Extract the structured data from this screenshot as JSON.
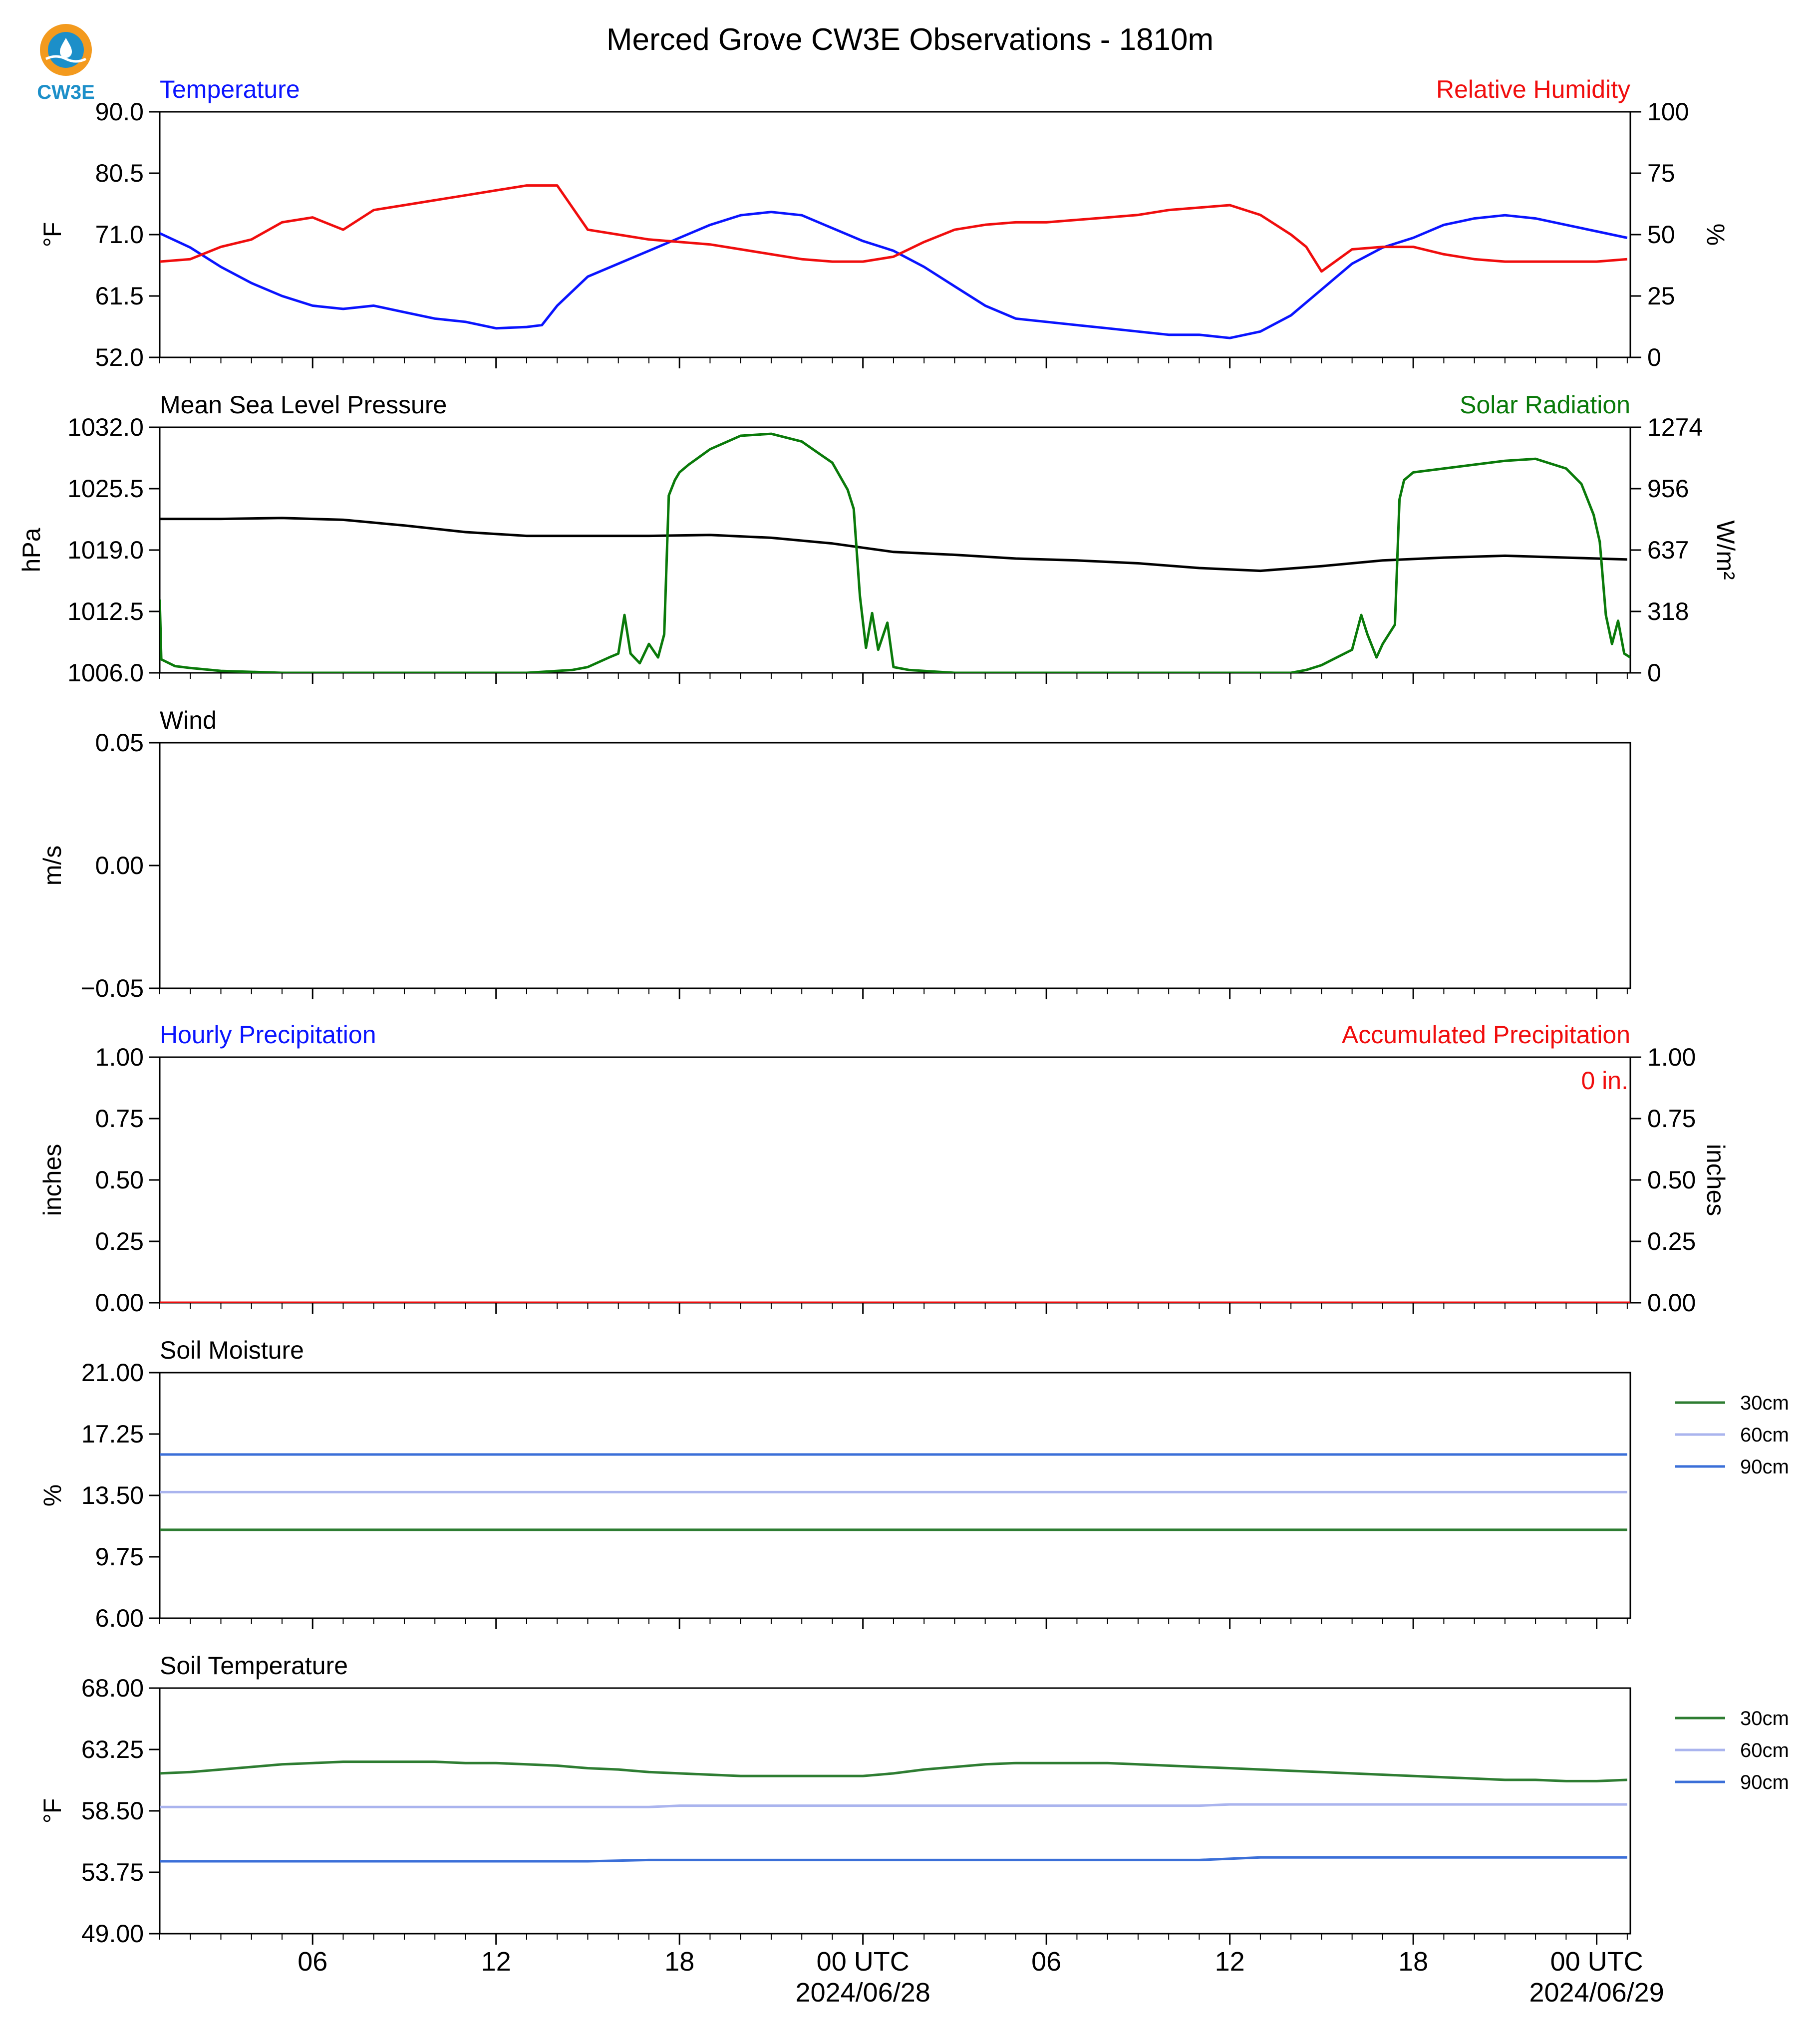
{
  "page": {
    "title": "Merced Grove CW3E Observations - 1810m",
    "logo_text": "CW3E",
    "colors": {
      "blue": "#0a14ff",
      "red": "#f00d0d",
      "green": "#0a7a0a",
      "black": "#000000",
      "soil30": "#2e7d32",
      "soil60": "#aab4ee",
      "soil90": "#3b6fd8",
      "logo_orange": "#f39a1e",
      "logo_blue": "#1c8fc9"
    }
  },
  "x_axis": {
    "tick_hours": [
      6,
      12,
      18,
      24,
      30,
      36,
      42,
      48
    ],
    "tick_labels": [
      "06",
      "12",
      "18",
      "00 UTC",
      "06",
      "12",
      "18",
      "00 UTC"
    ],
    "date_labels": [
      "2024/06/28",
      "2024/06/29"
    ],
    "range_hours": [
      1,
      49.1
    ],
    "minor_tick_every_hours": 1
  },
  "chart_data": [
    {
      "id": "temp_rh",
      "type": "line",
      "title_left": "Temperature",
      "title_right": "Relative Humidity",
      "ylabel_left": "°F",
      "ylabel_right": "%",
      "ylim_left": [
        52.0,
        90.0
      ],
      "ylim_right": [
        0,
        100
      ],
      "ticks_left": [
        "90.0",
        "80.5",
        "71.0",
        "61.5",
        "52.0"
      ],
      "ticks_right": [
        "100",
        "75",
        "50",
        "25",
        "0"
      ],
      "series": [
        {
          "name": "Temperature",
          "axis": "left",
          "color": "blue",
          "x": [
            1,
            2,
            3,
            4,
            5,
            6,
            7,
            8,
            9,
            10,
            11,
            12,
            13,
            13.5,
            14,
            15,
            16,
            17,
            18,
            19,
            20,
            21,
            22,
            23,
            24,
            25,
            26,
            27,
            28,
            29,
            30,
            31,
            32,
            33,
            34,
            35,
            36,
            37,
            38,
            39,
            40,
            41,
            42,
            43,
            44,
            45,
            46,
            47,
            48,
            49
          ],
          "y": [
            71.2,
            69.0,
            66.0,
            63.5,
            61.5,
            60.0,
            59.5,
            60.0,
            59.0,
            58.0,
            57.5,
            56.5,
            56.7,
            57.0,
            60.0,
            64.5,
            66.5,
            68.5,
            70.5,
            72.5,
            74.0,
            74.5,
            74.0,
            72.0,
            70.0,
            68.5,
            66.0,
            63.0,
            60.0,
            58.0,
            57.5,
            57.0,
            56.5,
            56.0,
            55.5,
            55.5,
            55.0,
            56.0,
            58.5,
            62.5,
            66.5,
            69.0,
            70.5,
            72.5,
            73.5,
            74.0,
            73.5,
            72.5,
            71.5,
            70.5
          ]
        },
        {
          "name": "Relative Humidity",
          "axis": "right",
          "color": "red",
          "x": [
            1,
            2,
            3,
            4,
            5,
            6,
            7,
            8,
            9,
            10,
            11,
            12,
            13,
            14,
            15,
            16,
            17,
            18,
            19,
            20,
            21,
            22,
            23,
            24,
            25,
            26,
            27,
            28,
            29,
            30,
            31,
            32,
            33,
            34,
            35,
            36,
            37,
            38,
            38.5,
            39,
            40,
            41,
            42,
            43,
            44,
            45,
            46,
            47,
            48,
            49
          ],
          "y": [
            39,
            40,
            45,
            48,
            55,
            57,
            52,
            60,
            62,
            64,
            66,
            68,
            70,
            70,
            52,
            50,
            48,
            47,
            46,
            44,
            42,
            40,
            39,
            39,
            41,
            47,
            52,
            54,
            55,
            55,
            56,
            57,
            58,
            60,
            61,
            62,
            58,
            50,
            45,
            35,
            44,
            45,
            45,
            42,
            40,
            39,
            39,
            39,
            39,
            40
          ]
        }
      ]
    },
    {
      "id": "pressure_solar",
      "type": "line",
      "title_left": "Mean Sea Level Pressure",
      "title_right": "Solar Radiation",
      "ylabel_left": "hPa",
      "ylabel_right": "W/m²",
      "ylim_left": [
        1006.0,
        1032.0
      ],
      "ylim_right": [
        0,
        1274
      ],
      "ticks_left": [
        "1032.0",
        "1025.5",
        "1019.0",
        "1012.5",
        "1006.0"
      ],
      "ticks_right": [
        "1274",
        "956",
        "637",
        "318",
        "0"
      ],
      "series": [
        {
          "name": "Mean Sea Level Pressure",
          "axis": "left",
          "color": "black",
          "x": [
            1,
            3,
            5,
            7,
            9,
            11,
            13,
            15,
            17,
            19,
            21,
            23,
            25,
            27,
            29,
            31,
            33,
            35,
            37,
            39,
            41,
            43,
            45,
            47,
            49
          ],
          "y": [
            1022.3,
            1022.3,
            1022.4,
            1022.2,
            1021.6,
            1020.9,
            1020.5,
            1020.5,
            1020.5,
            1020.6,
            1020.3,
            1019.7,
            1018.8,
            1018.5,
            1018.1,
            1017.9,
            1017.6,
            1017.1,
            1016.8,
            1017.3,
            1017.9,
            1018.2,
            1018.4,
            1018.2,
            1018.0
          ]
        },
        {
          "name": "Solar Radiation",
          "axis": "right",
          "color": "green",
          "x": [
            1,
            1.05,
            1.5,
            2,
            3,
            5,
            10,
            13,
            14.5,
            15,
            15.7,
            16,
            16.2,
            16.4,
            16.7,
            17,
            17.3,
            17.5,
            17.65,
            17.85,
            18,
            18.3,
            19,
            20,
            21,
            22,
            23,
            23.5,
            23.7,
            23.9,
            24.1,
            24.3,
            24.5,
            24.8,
            25,
            25.5,
            27,
            29,
            32,
            35,
            38,
            38.5,
            39,
            39.5,
            40,
            40.3,
            40.5,
            40.8,
            41,
            41.4,
            41.55,
            41.7,
            42,
            43,
            44,
            45,
            46,
            47,
            47.5,
            47.7,
            47.9,
            48.1,
            48.3,
            48.5,
            48.7,
            48.9,
            49.1
          ],
          "y": [
            380,
            70,
            35,
            25,
            10,
            0,
            0,
            0,
            15,
            30,
            80,
            100,
            300,
            100,
            50,
            150,
            80,
            200,
            920,
            1000,
            1040,
            1080,
            1160,
            1230,
            1240,
            1200,
            1090,
            950,
            850,
            400,
            130,
            310,
            120,
            260,
            30,
            15,
            0,
            0,
            0,
            0,
            0,
            15,
            40,
            80,
            120,
            300,
            200,
            80,
            150,
            250,
            900,
            1000,
            1040,
            1060,
            1080,
            1100,
            1110,
            1060,
            980,
            900,
            820,
            680,
            300,
            150,
            270,
            100,
            80
          ]
        }
      ]
    },
    {
      "id": "wind",
      "type": "line",
      "title_left": "Wind",
      "ylabel_left": "m/s",
      "ylim_left": [
        -0.055,
        0.055
      ],
      "ticks_left": [
        "0.05",
        "0.00",
        "−0.05"
      ],
      "series": []
    },
    {
      "id": "precip",
      "type": "line",
      "title_left": "Hourly Precipitation",
      "title_right": "Accumulated Precipitation",
      "ylabel_left": "inches",
      "ylabel_right": "inches",
      "ylim_left": [
        0,
        1
      ],
      "ylim_right": [
        0,
        1
      ],
      "ticks_left": [
        "1.00",
        "0.75",
        "0.50",
        "0.25",
        "0.00"
      ],
      "ticks_right": [
        "1.00",
        "0.75",
        "0.50",
        "0.25",
        "0.00"
      ],
      "annotation": "0 in.",
      "series": [
        {
          "name": "Hourly Precipitation",
          "axis": "left",
          "color": "blue",
          "x": [
            1,
            49.1
          ],
          "y": [
            0,
            0
          ]
        },
        {
          "name": "Accumulated Precipitation",
          "axis": "right",
          "color": "red",
          "x": [
            1,
            49.1
          ],
          "y": [
            0,
            0
          ]
        }
      ]
    },
    {
      "id": "soil_moisture",
      "type": "line",
      "title_left": "Soil Moisture",
      "ylabel_left": "%",
      "ylim_left": [
        6.0,
        21.0
      ],
      "ticks_left": [
        "21.00",
        "17.25",
        "13.50",
        "9.75",
        "6.00"
      ],
      "legend_position": "right",
      "series": [
        {
          "name": "30cm",
          "color": "soil30",
          "x": [
            1,
            49
          ],
          "y": [
            11.4,
            11.4
          ]
        },
        {
          "name": "60cm",
          "color": "soil60",
          "x": [
            1,
            49
          ],
          "y": [
            13.7,
            13.7
          ]
        },
        {
          "name": "90cm",
          "color": "soil90",
          "x": [
            1,
            49
          ],
          "y": [
            16.0,
            16.0
          ]
        }
      ]
    },
    {
      "id": "soil_temp",
      "type": "line",
      "title_left": "Soil Temperature",
      "ylabel_left": "°F",
      "ylim_left": [
        49.0,
        68.0
      ],
      "ticks_left": [
        "68.00",
        "63.25",
        "58.50",
        "53.75",
        "49.00"
      ],
      "legend_position": "right",
      "series": [
        {
          "name": "30cm",
          "color": "soil30",
          "x": [
            1,
            2,
            3,
            4,
            5,
            6,
            7,
            8,
            9,
            10,
            11,
            12,
            13,
            14,
            15,
            16,
            17,
            18,
            19,
            20,
            21,
            22,
            23,
            24,
            25,
            26,
            27,
            28,
            29,
            30,
            31,
            32,
            33,
            34,
            35,
            36,
            37,
            38,
            39,
            40,
            41,
            42,
            43,
            44,
            45,
            46,
            47,
            48,
            49
          ],
          "y": [
            61.4,
            61.5,
            61.7,
            61.9,
            62.1,
            62.2,
            62.3,
            62.3,
            62.3,
            62.3,
            62.2,
            62.2,
            62.1,
            62.0,
            61.8,
            61.7,
            61.5,
            61.4,
            61.3,
            61.2,
            61.2,
            61.2,
            61.2,
            61.2,
            61.4,
            61.7,
            61.9,
            62.1,
            62.2,
            62.2,
            62.2,
            62.2,
            62.1,
            62.0,
            61.9,
            61.8,
            61.7,
            61.6,
            61.5,
            61.4,
            61.3,
            61.2,
            61.1,
            61.0,
            60.9,
            60.9,
            60.8,
            60.8,
            60.9
          ]
        },
        {
          "name": "60cm",
          "color": "soil60",
          "x": [
            1,
            17,
            18,
            35,
            36,
            49
          ],
          "y": [
            58.8,
            58.8,
            58.9,
            58.9,
            59.0,
            59.0
          ]
        },
        {
          "name": "90cm",
          "color": "soil90",
          "x": [
            1,
            15,
            17,
            35,
            37,
            49
          ],
          "y": [
            54.6,
            54.6,
            54.7,
            54.7,
            54.9,
            54.9
          ]
        }
      ]
    }
  ]
}
